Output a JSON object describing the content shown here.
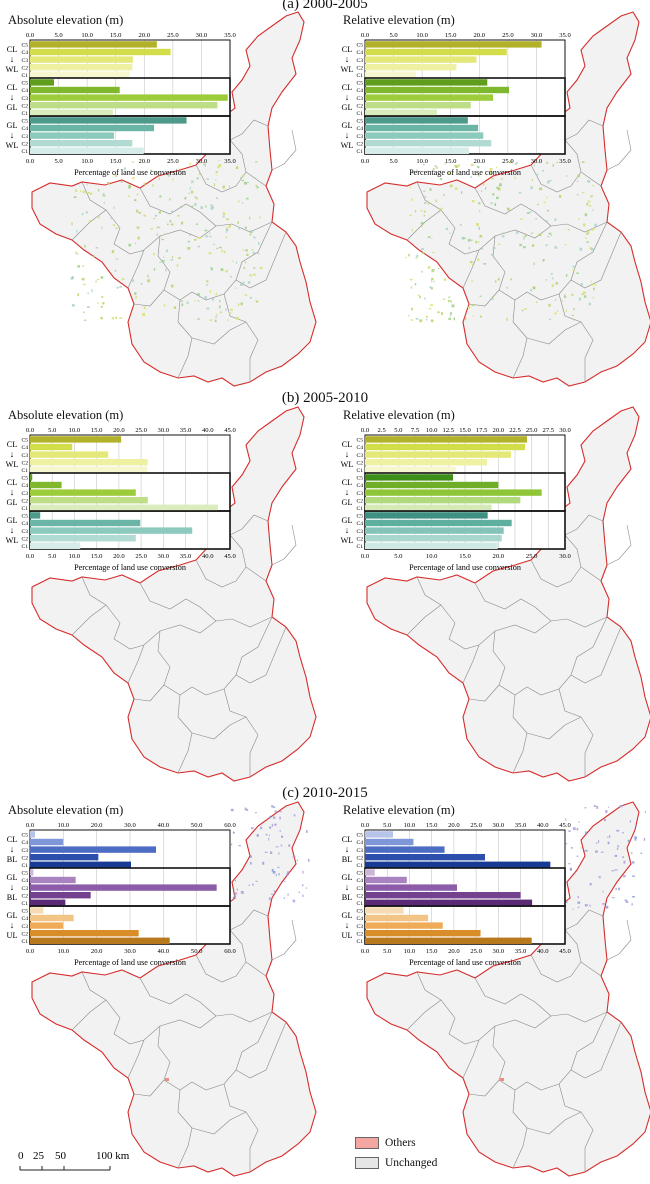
{
  "periods": [
    {
      "title": "(a) 2000-2005"
    },
    {
      "title": "(b) 2005-2010"
    },
    {
      "title": "(c) 2010-2015"
    }
  ],
  "legend": {
    "items": [
      {
        "label": "Others",
        "color": "#f4a6a0"
      },
      {
        "label": "Unchanged",
        "color": "#e6e6e6"
      }
    ]
  },
  "scalebar": {
    "ticks": [
      "0",
      "25",
      "50",
      "100 km"
    ]
  },
  "colors": {
    "boundary": "#d62c2c",
    "county_line": "#8a8a8a",
    "map_fill": "#f2f2f2"
  },
  "chart_data": [
    {
      "type": "bar",
      "title": "Absolute elevation (m)",
      "xlabel": "Percentage of land use conversion",
      "xlim": [
        0,
        35
      ],
      "ticks": [
        "0.0",
        "5.0",
        "10.0",
        "15.0",
        "20.0",
        "25.0",
        "30.0",
        "35.0"
      ],
      "ticks_bottom": [
        "0.0",
        "5.0",
        "10.0",
        "15.0",
        "20.0",
        "25.0",
        "30.0",
        "35.0"
      ],
      "categories": [
        "C5",
        "C4",
        "C3",
        "C2",
        "C1"
      ],
      "groups": [
        {
          "label": [
            "CL",
            "↓",
            "WL"
          ],
          "colors": [
            "#b2b22a",
            "#d3dc49",
            "#e3e878",
            "#eef0a2",
            "#f6f6cf"
          ],
          "values": [
            22.2,
            24.6,
            18.0,
            17.9,
            17.4
          ]
        },
        {
          "label": [
            "CL",
            "↓",
            "GL"
          ],
          "colors": [
            "#5e9e1c",
            "#80b82d",
            "#9ccc3a",
            "#bddd87",
            "#dbecbd"
          ],
          "values": [
            4.2,
            15.7,
            34.6,
            32.8,
            14.5
          ]
        },
        {
          "label": [
            "GL",
            "↓",
            "WL"
          ],
          "colors": [
            "#4d9a8a",
            "#6ab5a6",
            "#8ccabe",
            "#b0dad2",
            "#d5ece8"
          ],
          "values": [
            27.4,
            21.7,
            14.7,
            17.9,
            19.9
          ]
        }
      ]
    },
    {
      "type": "bar",
      "title": "Relative elevation (m)",
      "xlabel": "Percentage of land use conversion",
      "xlim": [
        0,
        35
      ],
      "ticks": [
        "0.0",
        "5.0",
        "10.0",
        "15.0",
        "20.0",
        "25.0",
        "30.0",
        "35.0"
      ],
      "ticks_bottom": [
        "0.0",
        "5.0",
        "10.0",
        "15.0",
        "20.0",
        "25.0",
        "30.0",
        "35.0"
      ],
      "categories": [
        "C5",
        "C4",
        "C3",
        "C2",
        "C1"
      ],
      "groups": [
        {
          "label": [
            "CL",
            "↓",
            "WL"
          ],
          "colors": [
            "#b2b22a",
            "#d3dc49",
            "#e3e878",
            "#eef0a2",
            "#f6f6cf"
          ],
          "values": [
            30.9,
            24.8,
            19.5,
            16.0,
            8.9
          ]
        },
        {
          "label": [
            "CL",
            "↓",
            "GL"
          ],
          "colors": [
            "#5e9e1c",
            "#80b82d",
            "#9ccc3a",
            "#bddd87",
            "#dbecbd"
          ],
          "values": [
            21.4,
            25.2,
            22.4,
            18.5,
            12.6
          ]
        },
        {
          "label": [
            "GL",
            "↓",
            "WL"
          ],
          "colors": [
            "#4d9a8a",
            "#6ab5a6",
            "#8ccabe",
            "#b0dad2",
            "#d5ece8"
          ],
          "values": [
            18.0,
            19.8,
            20.7,
            22.1,
            18.2
          ]
        }
      ]
    },
    {
      "type": "bar",
      "title": "Absolute elevation (m)",
      "xlabel": "Percentage of land use conversion",
      "xlim": [
        0,
        45
      ],
      "ticks": [
        "0.0",
        "5.0",
        "10.0",
        "15.0",
        "20.0",
        "25.0",
        "30.0",
        "35.0",
        "40.0",
        "45.0"
      ],
      "ticks_bottom": [
        "0.0",
        "5.0",
        "10.0",
        "15.0",
        "20.0",
        "25.0",
        "30.0",
        "35.0",
        "40.0",
        "45.0"
      ],
      "categories": [
        "C5",
        "C4",
        "C3",
        "C2",
        "C1"
      ],
      "groups": [
        {
          "label": [
            "CL",
            "↓",
            "WL"
          ],
          "colors": [
            "#b2b22a",
            "#d3dc49",
            "#e3e878",
            "#eef0a2",
            "#f6f6cf"
          ],
          "values": [
            20.5,
            9.5,
            17.6,
            26.5,
            26.4
          ]
        },
        {
          "label": [
            "CL",
            "↓",
            "GL"
          ],
          "colors": [
            "#5e9e1c",
            "#80b82d",
            "#9ccc3a",
            "#bddd87",
            "#dbecbd"
          ],
          "values": [
            0.5,
            7.1,
            23.8,
            26.5,
            42.3
          ]
        },
        {
          "label": [
            "GL",
            "↓",
            "WL"
          ],
          "colors": [
            "#4d9a8a",
            "#6ab5a6",
            "#8ccabe",
            "#b0dad2",
            "#d5ece8"
          ],
          "values": [
            2.3,
            24.8,
            36.5,
            23.8,
            11.3
          ]
        }
      ]
    },
    {
      "type": "bar",
      "title": "Relative elevation (m)",
      "xlabel": "Percentage of land use conversion",
      "xlim": [
        0,
        30
      ],
      "ticks": [
        "0.0",
        "2.5",
        "5.0",
        "7.5",
        "10.0",
        "12.5",
        "15.0",
        "17.5",
        "20.0",
        "22.5",
        "25.0",
        "27.5",
        "30.0"
      ],
      "ticks_bottom": [
        "0.0",
        "5.0",
        "10.0",
        "15.0",
        "20.0",
        "25.0",
        "30.0"
      ],
      "categories": [
        "C5",
        "C4",
        "C3",
        "C2",
        "C1"
      ],
      "groups": [
        {
          "label": [
            "CL",
            "↓",
            "WL"
          ],
          "colors": [
            "#b2b22a",
            "#d3dc49",
            "#e3e878",
            "#eef0a2",
            "#f6f6cf"
          ],
          "values": [
            24.3,
            24.0,
            21.9,
            18.3,
            13.6
          ]
        },
        {
          "label": [
            "CL",
            "↓",
            "GL"
          ],
          "colors": [
            "#3e8e1a",
            "#6fae27",
            "#8fc637",
            "#b3d97e",
            "#d6eab7"
          ],
          "values": [
            13.2,
            20.0,
            26.5,
            23.3,
            19.0
          ]
        },
        {
          "label": [
            "GL",
            "↓",
            "WL"
          ],
          "colors": [
            "#3f8f82",
            "#5faf9f",
            "#84c4b8",
            "#a9d7ce",
            "#cfeae5"
          ],
          "values": [
            18.4,
            22.0,
            20.8,
            20.5,
            19.9
          ]
        }
      ]
    },
    {
      "type": "bar",
      "title": "Absolute elevation (m)",
      "xlabel": "Percentage of land use conversion",
      "xlim": [
        0,
        60
      ],
      "ticks": [
        "0.0",
        "10.0",
        "20.0",
        "30.0",
        "40.0",
        "50.0",
        "60.0"
      ],
      "ticks_bottom": [
        "0.0",
        "10.0",
        "20.0",
        "30.0",
        "40.0",
        "50.0",
        "60.0"
      ],
      "categories": [
        "C5",
        "C4",
        "C3",
        "C2",
        "C1"
      ],
      "groups": [
        {
          "label": [
            "CL",
            "↓",
            "BL"
          ],
          "colors": [
            "#b7c4ea",
            "#7f97d8",
            "#4d6cc4",
            "#2c4fae",
            "#173a94"
          ],
          "values": [
            1.5,
            10.0,
            37.8,
            20.5,
            30.3
          ]
        },
        {
          "label": [
            "GL",
            "↓",
            "BL"
          ],
          "colors": [
            "#cdb5d8",
            "#a983c0",
            "#8d5ca8",
            "#73418e",
            "#5a2a76"
          ],
          "values": [
            1.0,
            13.7,
            56.0,
            18.2,
            10.6
          ]
        },
        {
          "label": [
            "GL",
            "↓",
            "UL"
          ],
          "colors": [
            "#f6dcb4",
            "#f2c486",
            "#eeab58",
            "#d98d28",
            "#b8781c"
          ],
          "values": [
            4.0,
            13.1,
            9.9,
            32.6,
            41.9
          ]
        }
      ]
    },
    {
      "type": "bar",
      "title": "Relative elevation (m)",
      "xlabel": "Percentage of land use conversion",
      "xlim": [
        0,
        45
      ],
      "ticks": [
        "0.0",
        "5.0",
        "10.0",
        "15.0",
        "20.0",
        "25.0",
        "30.0",
        "35.0",
        "40.0",
        "45.0"
      ],
      "ticks_bottom": [
        "0.0",
        "5.0",
        "10.0",
        "15.0",
        "20.0",
        "25.0",
        "30.0",
        "35.0",
        "40.0",
        "45.0"
      ],
      "categories": [
        "C5",
        "C4",
        "C3",
        "C2",
        "C1"
      ],
      "groups": [
        {
          "label": [
            "CL",
            "↓",
            "BL"
          ],
          "colors": [
            "#b7c4ea",
            "#7f97d8",
            "#4d6cc4",
            "#2c4fae",
            "#173a94"
          ],
          "values": [
            6.3,
            10.9,
            17.9,
            27.0,
            41.7
          ]
        },
        {
          "label": [
            "GL",
            "↓",
            "BL"
          ],
          "colors": [
            "#cdb5d8",
            "#a983c0",
            "#8d5ca8",
            "#73418e",
            "#5a2a76"
          ],
          "values": [
            2.2,
            9.4,
            20.7,
            35.0,
            37.6
          ]
        },
        {
          "label": [
            "GL",
            "↓",
            "UL"
          ],
          "colors": [
            "#f6dcb4",
            "#f2c486",
            "#eeab58",
            "#d98d28",
            "#b8781c"
          ],
          "values": [
            8.7,
            14.2,
            17.5,
            26.0,
            37.5
          ]
        }
      ]
    }
  ]
}
